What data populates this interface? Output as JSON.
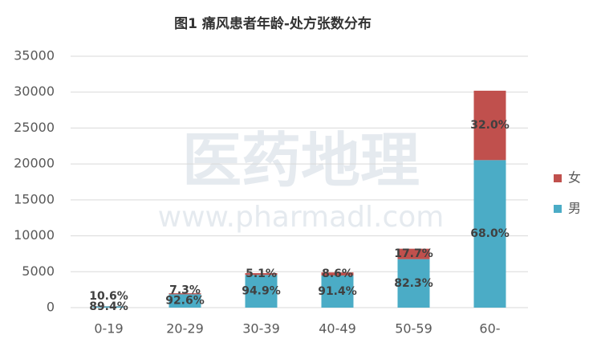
{
  "chart_data": {
    "type": "stacked_bar",
    "title": "图1 痛风患者年龄-处方张数分布",
    "watermark": [
      "医药地理",
      "www.pharmadl.com"
    ],
    "categories": [
      "0-19",
      "20-29",
      "30-39",
      "40-49",
      "50-59",
      "60-"
    ],
    "series": [
      {
        "name": "男",
        "color": "#4bacc6",
        "values": [
          179,
          1852,
          4555,
          4479,
          6749,
          20536
        ],
        "value_labels": [
          "89.4%",
          "92.6%",
          "94.9%",
          "91.4%",
          "82.3%",
          "68.0%"
        ]
      },
      {
        "name": "女",
        "color": "#c0504d",
        "values": [
          21,
          146,
          245,
          421,
          1451,
          9664
        ],
        "value_labels": [
          "10.6%",
          "7.3%",
          "5.1%",
          "8.6%",
          "17.7%",
          "32.0%"
        ]
      }
    ],
    "ylim": [
      0,
      35000
    ],
    "yticks": [
      0,
      5000,
      10000,
      15000,
      20000,
      25000,
      30000,
      35000
    ],
    "grid": true,
    "legend": "right"
  }
}
